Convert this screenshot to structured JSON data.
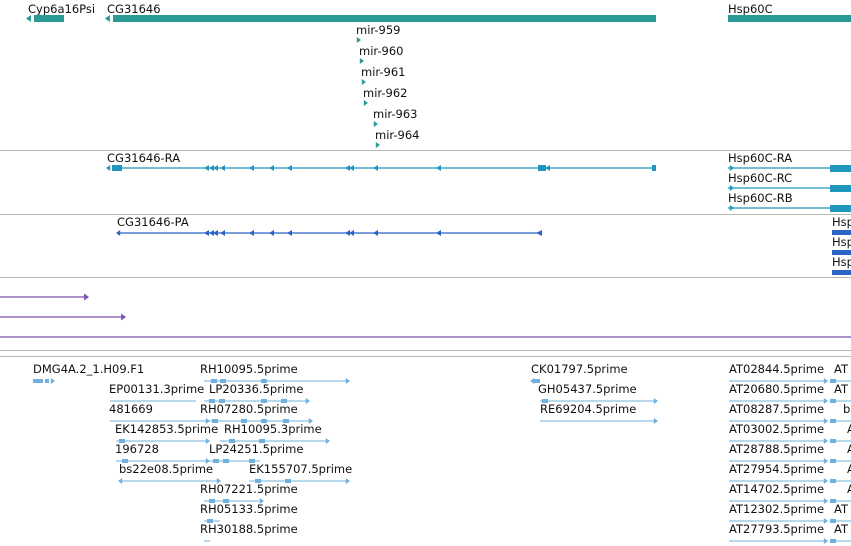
{
  "colors": {
    "gene": "#2a9a96",
    "transcript": "#1f97bd",
    "protein": "#2b63c6",
    "linear": "#7b52a8",
    "est": "#6fb0dc",
    "mirna": "#2a9a96",
    "divider": "#b8b8b8",
    "text": "#111111"
  },
  "tracks": {
    "genes": {
      "items": [
        {
          "label": "Cyp6a16Psi",
          "strand": "-"
        },
        {
          "label": "CG31646",
          "strand": "-"
        },
        {
          "label": "Hsp60C",
          "strand": "+"
        },
        {
          "label": "mir-959",
          "strand": "+"
        },
        {
          "label": "mir-960",
          "strand": "+"
        },
        {
          "label": "mir-961",
          "strand": "+"
        },
        {
          "label": "mir-962",
          "strand": "+"
        },
        {
          "label": "mir-963",
          "strand": "+"
        },
        {
          "label": "mir-964",
          "strand": "+"
        }
      ]
    },
    "transcripts": {
      "items": [
        {
          "label": "CG31646-RA",
          "strand": "-"
        },
        {
          "label": "Hsp60C-RA",
          "strand": "+"
        },
        {
          "label": "Hsp60C-RC",
          "strand": "+"
        },
        {
          "label": "Hsp60C-RB",
          "strand": "+"
        }
      ]
    },
    "proteins": {
      "items": [
        {
          "label": "CG31646-PA",
          "strand": "-"
        },
        {
          "label": "Hsp",
          "strand": "+"
        },
        {
          "label": "Hsp",
          "strand": "+"
        },
        {
          "label": "Hsp",
          "strand": "+"
        }
      ]
    },
    "linear": {
      "items": [
        {
          "label": "",
          "strand": "+"
        },
        {
          "label": "",
          "strand": "+"
        },
        {
          "label": "",
          "strand": "none"
        }
      ]
    },
    "ests": {
      "items": [
        {
          "label": "DMG4A.2_1.H09.F1"
        },
        {
          "label": "RH10095.5prime"
        },
        {
          "label": "EP00131.3prime"
        },
        {
          "label": "LP20336.5prime"
        },
        {
          "label": "481669"
        },
        {
          "label": "RH07280.5prime"
        },
        {
          "label": "EK142853.5prime"
        },
        {
          "label": "RH10095.3prime"
        },
        {
          "label": "196728"
        },
        {
          "label": "LP24251.5prime"
        },
        {
          "label": "bs22e08.5prime"
        },
        {
          "label": "EK155707.5prime"
        },
        {
          "label": "RH07221.5prime"
        },
        {
          "label": "RH05133.5prime"
        },
        {
          "label": "RH30188.5prime"
        },
        {
          "label": "CK01797.5prime"
        },
        {
          "label": "GH05437.5prime"
        },
        {
          "label": "RE69204.5prime"
        },
        {
          "label": "AT02844.5prime"
        },
        {
          "label": "AT20680.5prime"
        },
        {
          "label": "AT08287.5prime"
        },
        {
          "label": "AT03002.5prime"
        },
        {
          "label": "AT28788.5prime"
        },
        {
          "label": "AT27954.5prime"
        },
        {
          "label": "AT14702.5prime"
        },
        {
          "label": "AT12302.5prime"
        },
        {
          "label": "AT27793.5prime"
        },
        {
          "label": "AT"
        },
        {
          "label": "AT"
        },
        {
          "label": "b"
        },
        {
          "label": "A"
        },
        {
          "label": "A"
        },
        {
          "label": "A"
        },
        {
          "label": "A"
        },
        {
          "label": "AT"
        },
        {
          "label": "AT"
        }
      ]
    }
  }
}
